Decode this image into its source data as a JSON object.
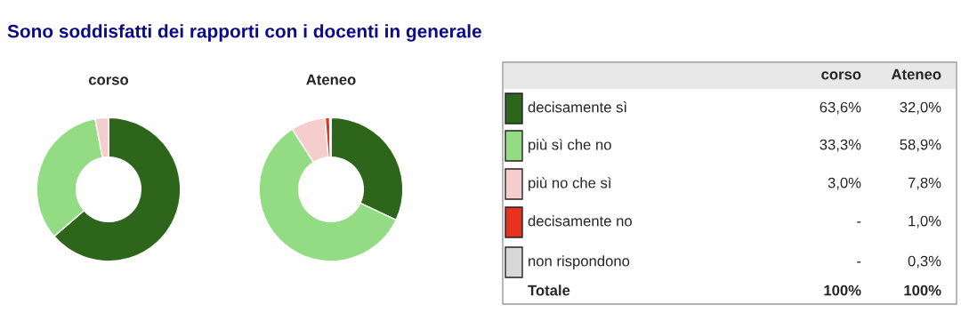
{
  "chart_data": [
    {
      "type": "other",
      "title": "Sono soddisfatti dei rapporti con i docenti in generale"
    },
    {
      "type": "donut",
      "title": "corso",
      "categories": [
        null,
        null,
        null,
        null,
        null
      ],
      "values": [
        63.6,
        33.3,
        3.0,
        null,
        null
      ],
      "colors": [
        "#2d661b",
        "#93dc84",
        "#f6cdcd",
        "#e8321f",
        "#d8d8d8"
      ]
    },
    {
      "type": "donut",
      "title": "Ateneo",
      "categories": [
        null,
        null,
        null,
        null,
        null
      ],
      "values": [
        32.0,
        58.9,
        7.8,
        1.0,
        0.3
      ],
      "colors": [
        "#2d661b",
        "#93dc84",
        "#f6cdcd",
        "#e8321f",
        "#d8d8d8"
      ]
    },
    {
      "type": "other",
      "categories": [
        "decisamente sì",
        "più sì che no",
        "più no che sì",
        "decisamente no",
        "non rispondono"
      ],
      "colors": [
        "#2d661b",
        "#93dc84",
        "#f6cdcd",
        "#e8321f",
        "#d8d8d8"
      ],
      "annotations": [
        "corso",
        "Ateneo",
        "63,6%",
        "32,0%",
        "33,3%",
        "58,9%",
        "3,0%",
        "7,8%",
        "-",
        "1,0%",
        "-",
        "0,3%",
        "Totale",
        "100%",
        "100%"
      ]
    }
  ]
}
